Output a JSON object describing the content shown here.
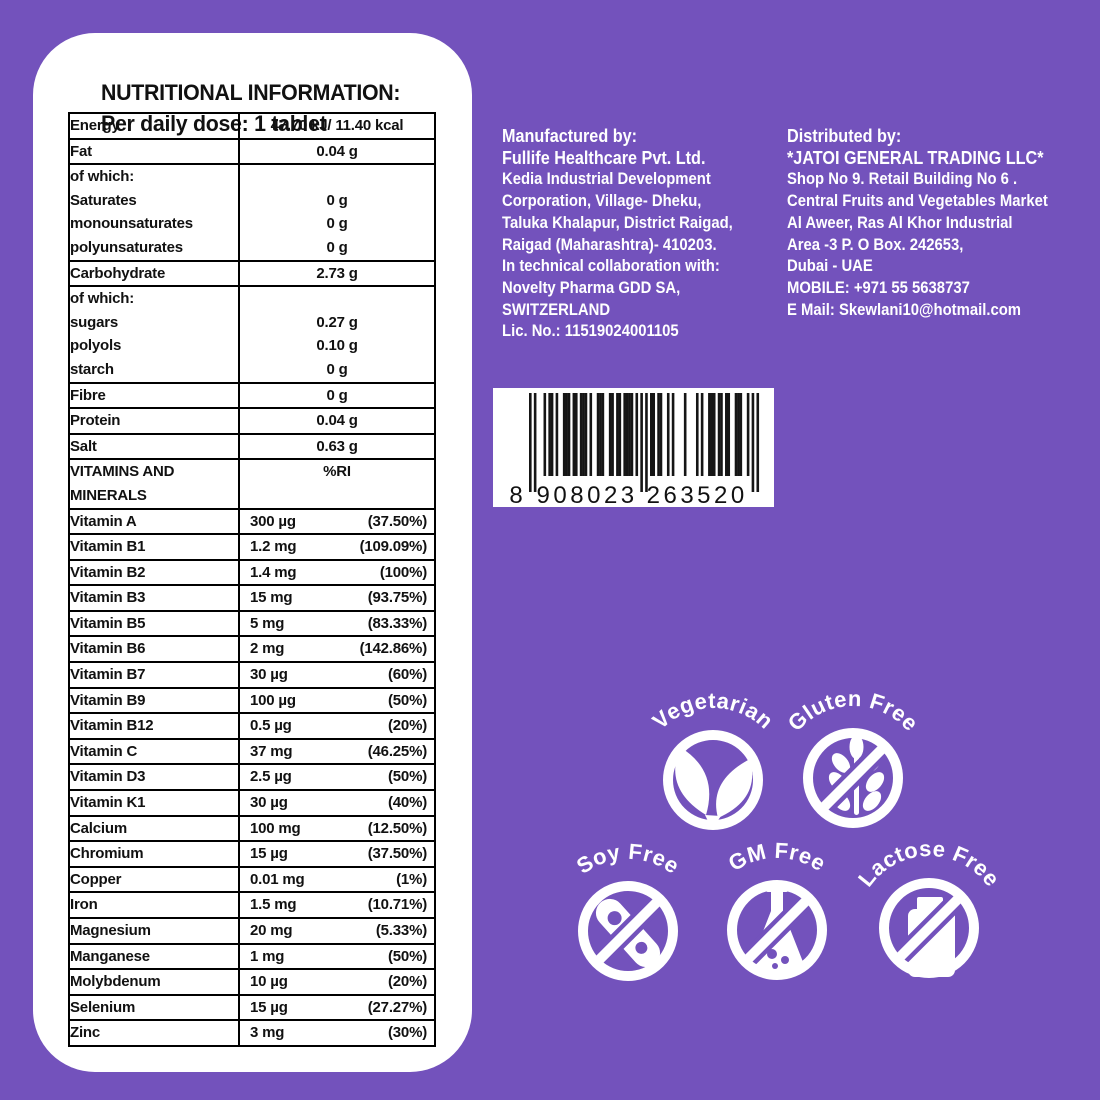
{
  "colors": {
    "background": "#7352BC",
    "panel": "#FFFFFF",
    "text_dark": "#111111",
    "text_light": "#FFFFFF",
    "barcode_black": "#151515"
  },
  "panel": {
    "title": "NUTRITIONAL INFORMATION:",
    "subtitle": "Per daily dose: 1 tablet"
  },
  "nutrition_table": {
    "rows": [
      {
        "type": "simple",
        "name": "Energy",
        "value": "47.70 kJ/ 11.40 kcal"
      },
      {
        "type": "simple",
        "name": "Fat",
        "value": "0.04 g"
      },
      {
        "type": "group",
        "lines": [
          {
            "name": "of which:",
            "value": ""
          },
          {
            "name": "Saturates",
            "value": "0 g"
          },
          {
            "name": "monounsaturates",
            "value": "0 g"
          },
          {
            "name": "polyunsaturates",
            "value": "0 g"
          }
        ]
      },
      {
        "type": "simple",
        "name": "Carbohydrate",
        "value": "2.73 g"
      },
      {
        "type": "group",
        "lines": [
          {
            "name": "of which:",
            "value": ""
          },
          {
            "name": "sugars",
            "value": "0.27 g"
          },
          {
            "name": "polyols",
            "value": "0.10 g"
          },
          {
            "name": "starch",
            "value": "0 g"
          }
        ]
      },
      {
        "type": "simple",
        "name": "Fibre",
        "value": "0 g"
      },
      {
        "type": "simple",
        "name": "Protein",
        "value": "0.04 g"
      },
      {
        "type": "simple",
        "name": "Salt",
        "value": "0.63 g"
      },
      {
        "type": "header",
        "name": "VITAMINS AND MINERALS",
        "value": "%RI"
      },
      {
        "type": "nutrient",
        "name": "Vitamin A",
        "amount": "300 µg",
        "ri": "(37.50%)"
      },
      {
        "type": "nutrient",
        "name": "Vitamin B1",
        "amount": "1.2 mg",
        "ri": "(109.09%)"
      },
      {
        "type": "nutrient",
        "name": "Vitamin B2",
        "amount": "1.4 mg",
        "ri": "(100%)"
      },
      {
        "type": "nutrient",
        "name": "Vitamin B3",
        "amount": "15 mg",
        "ri": "(93.75%)"
      },
      {
        "type": "nutrient",
        "name": "Vitamin B5",
        "amount": "5 mg",
        "ri": "(83.33%)"
      },
      {
        "type": "nutrient",
        "name": "Vitamin B6",
        "amount": "2 mg",
        "ri": "(142.86%)"
      },
      {
        "type": "nutrient",
        "name": "Vitamin B7",
        "amount": "30 µg",
        "ri": "(60%)"
      },
      {
        "type": "nutrient",
        "name": "Vitamin B9",
        "amount": "100 µg",
        "ri": "(50%)"
      },
      {
        "type": "nutrient",
        "name": "Vitamin B12",
        "amount": "0.5 µg",
        "ri": "(20%)"
      },
      {
        "type": "nutrient",
        "name": "Vitamin C",
        "amount": "37 mg",
        "ri": "(46.25%)"
      },
      {
        "type": "nutrient",
        "name": "Vitamin D3",
        "amount": "2.5 µg",
        "ri": "(50%)"
      },
      {
        "type": "nutrient",
        "name": "Vitamin K1",
        "amount": "30 µg",
        "ri": "(40%)"
      },
      {
        "type": "nutrient",
        "name": "Calcium",
        "amount": "100 mg",
        "ri": "(12.50%)"
      },
      {
        "type": "nutrient",
        "name": "Chromium",
        "amount": "15 µg",
        "ri": "(37.50%)"
      },
      {
        "type": "nutrient",
        "name": "Copper",
        "amount": "0.01 mg",
        "ri": "(1%)"
      },
      {
        "type": "nutrient",
        "name": "Iron",
        "amount": "1.5 mg",
        "ri": "(10.71%)"
      },
      {
        "type": "nutrient",
        "name": "Magnesium",
        "amount": "20 mg",
        "ri": "(5.33%)"
      },
      {
        "type": "nutrient",
        "name": "Manganese",
        "amount": "1 mg",
        "ri": "(50%)"
      },
      {
        "type": "nutrient",
        "name": "Molybdenum",
        "amount": "10 µg",
        "ri": "(20%)"
      },
      {
        "type": "nutrient",
        "name": "Selenium",
        "amount": "15 µg",
        "ri": "(27.27%)"
      },
      {
        "type": "nutrient",
        "name": "Zinc",
        "amount": "3 mg",
        "ri": "(30%)"
      }
    ]
  },
  "manufacturer": {
    "heading": "Manufactured by:",
    "company": "Fullife Healthcare Pvt. Ltd.",
    "address_lines": [
      "Kedia Industrial Development",
      "Corporation, Village- Dheku,",
      "Taluka Khalapur, District Raigad,",
      "Raigad (Maharashtra)- 410203.",
      "In technical collaboration with:",
      "Novelty Pharma GDD SA,",
      "SWITZERLAND",
      "Lic. No.: 11519024001105"
    ]
  },
  "distributor": {
    "heading": "Distributed by:",
    "company": "*JATOI GENERAL TRADING LLC*",
    "address_lines": [
      "Shop No 9. Retail Building No 6 .",
      "Central Fruits and Vegetables Market",
      "Al Aweer, Ras Al Khor Industrial",
      "Area -3 P. O Box. 242653,",
      "Dubai - UAE",
      "MOBILE: +971 55 5638737",
      "E Mail: Skewlani10@hotmail.com"
    ]
  },
  "barcode": {
    "value": "8908023263520",
    "display_groups": [
      "8",
      "908023",
      "263520"
    ]
  },
  "badges": [
    {
      "label": "Vegetarian",
      "icon": "leaf-icon",
      "crossed": false
    },
    {
      "label": "Gluten Free",
      "icon": "wheat-icon",
      "crossed": true
    },
    {
      "label": "Soy Free",
      "icon": "soy-pod-icon",
      "crossed": true
    },
    {
      "label": "GM Free",
      "icon": "flask-icon",
      "crossed": true
    },
    {
      "label": "Lactose Free",
      "icon": "milk-bottle-icon",
      "crossed": true
    }
  ]
}
